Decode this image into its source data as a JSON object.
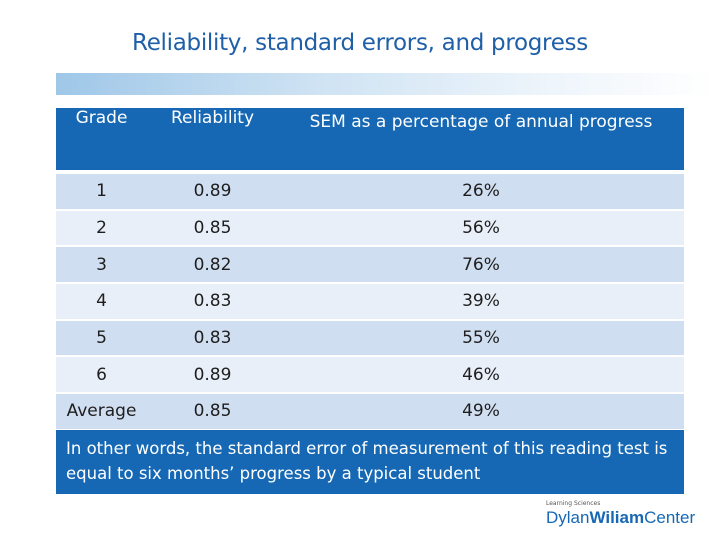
{
  "title": "Reliability, standard errors, and progress",
  "table": {
    "headers": [
      "Grade",
      "Reliability",
      "SEM as a percentage of annual progress"
    ],
    "rows": [
      [
        "1",
        "0.89",
        "26%"
      ],
      [
        "2",
        "0.85",
        "56%"
      ],
      [
        "3",
        "0.82",
        "76%"
      ],
      [
        "4",
        "0.83",
        "39%"
      ],
      [
        "5",
        "0.83",
        "55%"
      ],
      [
        "6",
        "0.89",
        "46%"
      ],
      [
        "Average",
        "0.85",
        "49%"
      ]
    ]
  },
  "callout": "In other words, the standard error of measurement of this reading test is equal to six months’ progress by a typical student",
  "logo": {
    "tagline": "Learning Sciences",
    "name_light": "Dylan",
    "name_bold": "Wiliam",
    "name_suffix": "Center"
  },
  "colors": {
    "accent": "#1668b4",
    "row_dark": "#d0def1",
    "row_light": "#e9eff8",
    "title": "#1f5fa8"
  }
}
